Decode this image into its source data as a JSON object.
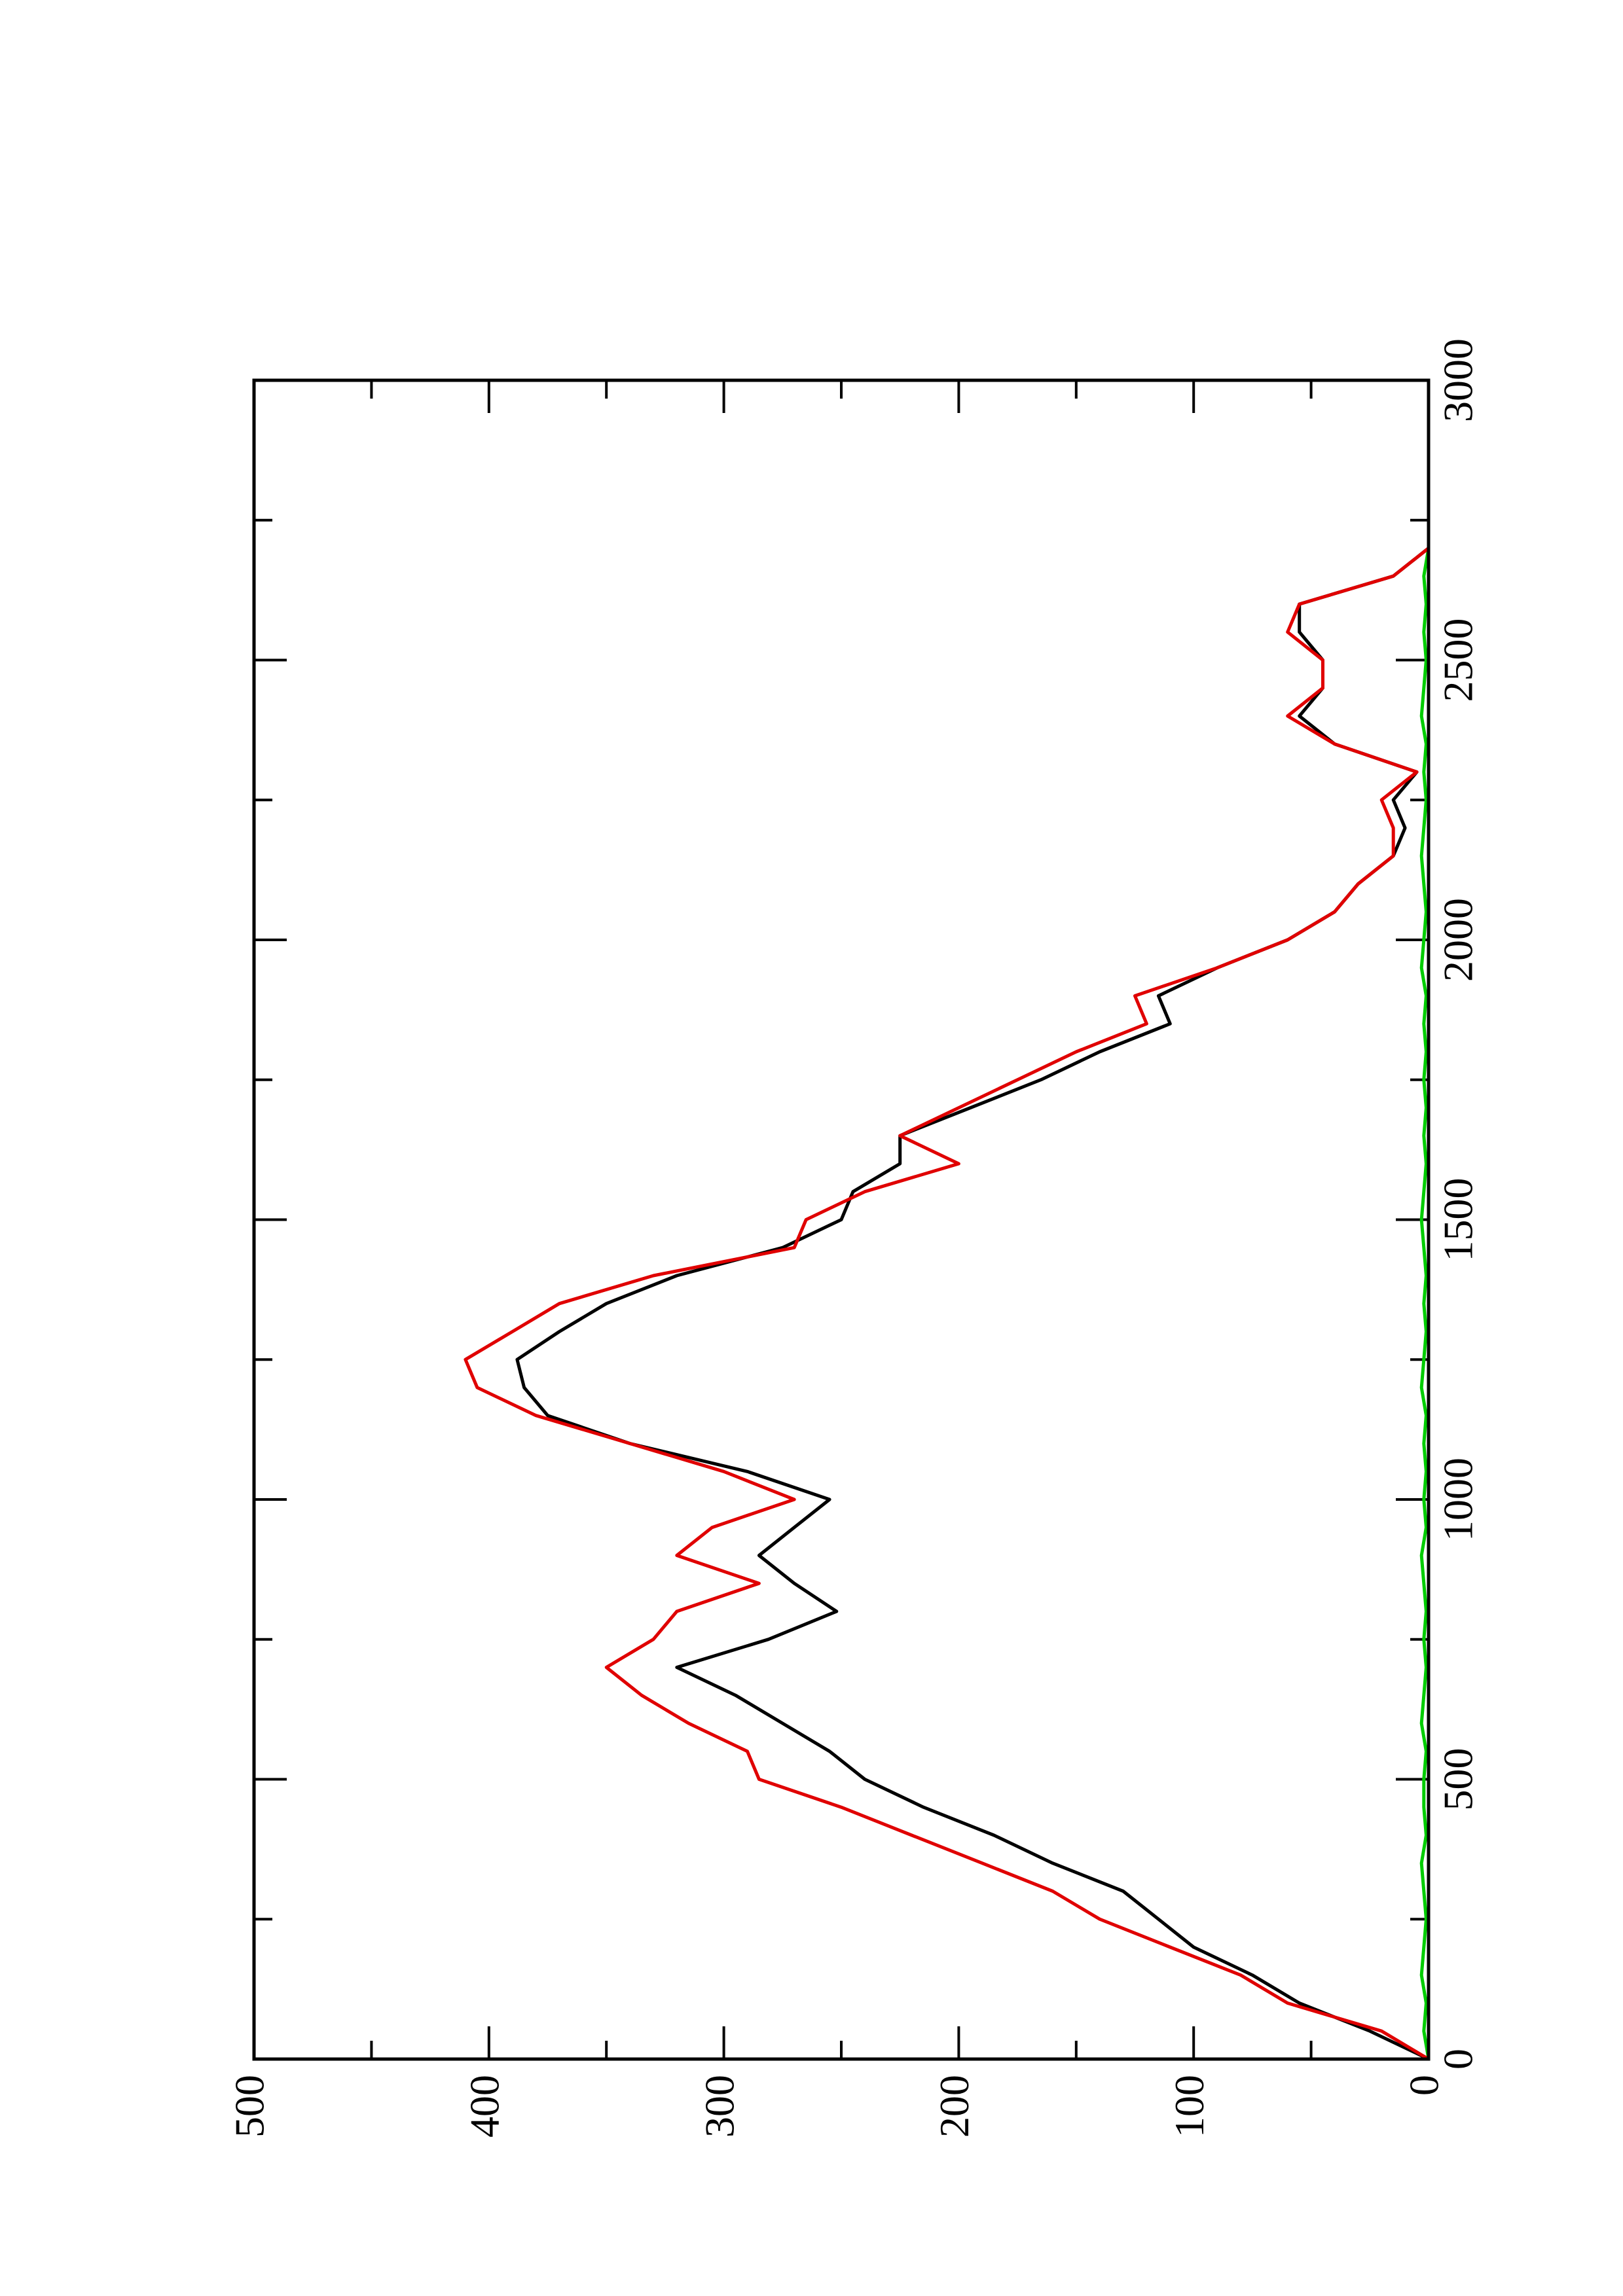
{
  "chart_data": {
    "type": "line",
    "x": [
      0,
      50,
      100,
      150,
      200,
      250,
      300,
      350,
      400,
      450,
      500,
      550,
      600,
      650,
      700,
      750,
      800,
      850,
      900,
      950,
      1000,
      1050,
      1100,
      1150,
      1200,
      1250,
      1300,
      1350,
      1400,
      1450,
      1500,
      1550,
      1600,
      1650,
      1700,
      1750,
      1800,
      1850,
      1900,
      1950,
      2000,
      2050,
      2100,
      2150,
      2200,
      2250,
      2300,
      2350,
      2400,
      2450,
      2500,
      2550,
      2600,
      2650,
      2700
    ],
    "series": [
      {
        "color": "#00cc00",
        "values": [
          0,
          2,
          1,
          3,
          2,
          1,
          2,
          3,
          1,
          2,
          2,
          1,
          3,
          2,
          1,
          2,
          1,
          2,
          3,
          1,
          2,
          1,
          2,
          1,
          3,
          2,
          1,
          2,
          1,
          2,
          3,
          2,
          1,
          2,
          1,
          2,
          1,
          2,
          1,
          3,
          2,
          1,
          2,
          3,
          2,
          1,
          2,
          1,
          3,
          2,
          1,
          2,
          1,
          2,
          0
        ]
      },
      {
        "color": "#000000",
        "values": [
          0,
          25,
          55,
          75,
          100,
          115,
          130,
          160,
          185,
          215,
          240,
          255,
          275,
          295,
          320,
          281,
          252,
          270,
          285,
          270,
          255,
          290,
          340,
          375,
          385,
          388,
          370,
          350,
          320,
          275,
          250,
          245,
          225,
          225,
          195,
          165,
          140,
          110,
          115,
          90,
          60,
          40,
          30,
          15,
          10,
          15,
          5,
          40,
          55,
          45,
          45,
          55,
          55,
          15,
          0
        ]
      },
      {
        "color": "#e00000",
        "values": [
          0,
          20,
          60,
          80,
          110,
          140,
          160,
          190,
          220,
          250,
          285,
          290,
          315,
          335,
          350,
          330,
          320,
          285,
          320,
          305,
          270,
          300,
          340,
          380,
          405,
          410,
          390,
          370,
          330,
          270,
          265,
          240,
          200,
          225,
          200,
          175,
          150,
          120,
          125,
          90,
          60,
          40,
          30,
          15,
          15,
          20,
          5,
          40,
          60,
          45,
          45,
          60,
          55,
          15,
          0
        ]
      }
    ],
    "xlim": [
      0,
      3000
    ],
    "ylim": [
      0,
      500
    ],
    "xticks": [
      0,
      500,
      1000,
      1500,
      2000,
      2500,
      3000
    ],
    "xminorticks": [
      250,
      750,
      1250,
      1750,
      2250,
      2750
    ],
    "yticks": [
      0,
      100,
      200,
      300,
      400,
      500
    ],
    "yminorticks": [
      50,
      150,
      250,
      350,
      450
    ]
  }
}
